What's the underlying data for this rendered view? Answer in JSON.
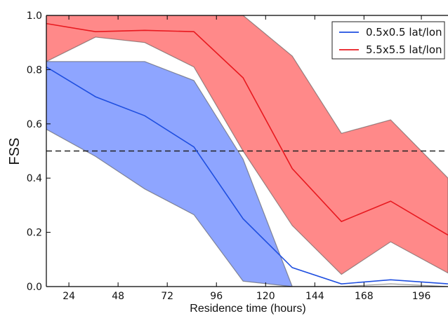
{
  "chart_data": {
    "type": "line",
    "title": "",
    "xlabel": "Residence time (hours)",
    "ylabel": "FSS",
    "xlim": [
      13,
      209
    ],
    "ylim": [
      0,
      1.0
    ],
    "x_ticks": [
      24,
      48,
      72,
      96,
      120,
      144,
      168,
      196
    ],
    "x_tick_labels": [
      "24",
      "48",
      "72",
      "96",
      "120",
      "144",
      "168",
      "196"
    ],
    "y_ticks": [
      0,
      0.2,
      0.4,
      0.6,
      0.8,
      1.0
    ],
    "y_tick_labels": [
      "0.0",
      "0.2",
      "0.4",
      "0.6",
      "0.8",
      "1.0"
    ],
    "reference_line": {
      "y": 0.5,
      "style": "dashed",
      "color": "#222222"
    },
    "legend": {
      "position": "top-right"
    },
    "series": [
      {
        "name": "0.5x0.5 lat/lon",
        "color": "#1f4fe0",
        "fill_color": "#1e4bff",
        "x": [
          13,
          37,
          61,
          85,
          109,
          133,
          157,
          181,
          209
        ],
        "values": [
          0.81,
          0.7,
          0.63,
          0.515,
          0.25,
          0.07,
          0.01,
          0.025,
          0.01
        ],
        "lower": [
          0.58,
          0.48,
          0.36,
          0.265,
          0.02,
          0.0,
          0.0,
          0.01,
          0.0
        ],
        "upper": [
          0.83,
          0.83,
          0.83,
          0.76,
          0.47,
          0.0,
          0.0,
          0.01,
          0.0
        ]
      },
      {
        "name": "5.5x5.5 lat/lon",
        "color": "#e8191f",
        "fill_color": "#ff1414",
        "x": [
          13,
          37,
          61,
          85,
          109,
          133,
          157,
          181,
          209
        ],
        "values": [
          0.97,
          0.94,
          0.945,
          0.94,
          0.77,
          0.435,
          0.24,
          0.315,
          0.19
        ],
        "lower": [
          0.83,
          0.92,
          0.9,
          0.81,
          0.5,
          0.225,
          0.045,
          0.165,
          0.05
        ],
        "upper": [
          1.0,
          1.0,
          1.0,
          1.0,
          1.0,
          0.85,
          0.565,
          0.615,
          0.4
        ]
      }
    ]
  }
}
